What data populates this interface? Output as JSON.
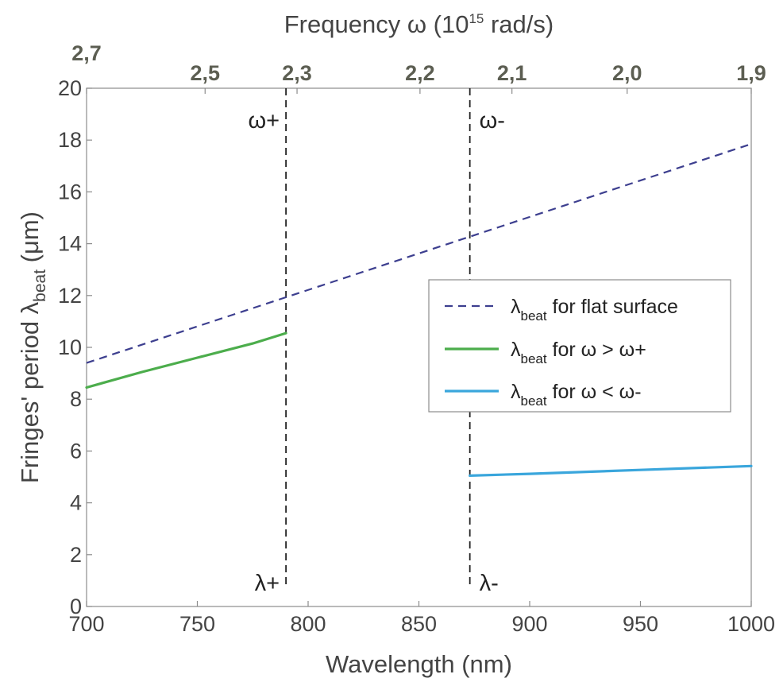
{
  "chart_data": {
    "type": "line",
    "xlabel": "Wavelength (nm)",
    "xlim": [
      700,
      1000
    ],
    "x_ticks": [
      700,
      750,
      800,
      850,
      900,
      950,
      1000
    ],
    "ylabel": {
      "prefix": "Fringes' period  λ",
      "subscript": "beat",
      "suffix": " (μm)"
    },
    "ylim": [
      0,
      20
    ],
    "y_ticks": [
      0,
      2,
      4,
      6,
      8,
      10,
      12,
      14,
      16,
      18,
      20
    ],
    "top_axis": {
      "label": {
        "prefix": "Frequency ω (10",
        "superscript": "15",
        "suffix": " rad/s)"
      },
      "ticks": [
        {
          "label": "2,7",
          "x": 700
        },
        {
          "label": "2,5",
          "x": 753.5
        },
        {
          "label": "2,3",
          "x": 795
        },
        {
          "label": "2,2",
          "x": 850.5
        },
        {
          "label": "2,1",
          "x": 892
        },
        {
          "label": "2,0",
          "x": 944
        },
        {
          "label": "1,9",
          "x": 1000
        }
      ]
    },
    "grid": false,
    "vlines": [
      {
        "x": 790,
        "top_label": "ω+",
        "bottom_label": "λ+"
      },
      {
        "x": 873,
        "top_label": "ω-",
        "bottom_label": "λ-"
      }
    ],
    "series": [
      {
        "name": "flat surface",
        "style": "dashed",
        "color": "#3d3f8f",
        "x": [
          700,
          1000
        ],
        "y": [
          9.4,
          17.85
        ]
      },
      {
        "name": "ω > ω+",
        "style": "solid",
        "color": "#4cad4c",
        "x": [
          700,
          725,
          750,
          775,
          790
        ],
        "y": [
          8.45,
          9.05,
          9.6,
          10.15,
          10.55
        ]
      },
      {
        "name": "ω < ω-",
        "style": "solid",
        "color": "#3aa6dc",
        "x": [
          873,
          900,
          950,
          1000
        ],
        "y": [
          5.05,
          5.12,
          5.27,
          5.42
        ]
      }
    ],
    "legend": {
      "position": "center-right",
      "symbol": "λ",
      "subscript": "beat",
      "entries": [
        {
          "series": 0,
          "text": " for flat surface"
        },
        {
          "series": 1,
          "text": " for ω > ω+"
        },
        {
          "series": 2,
          "text": " for ω < ω-"
        }
      ]
    }
  }
}
